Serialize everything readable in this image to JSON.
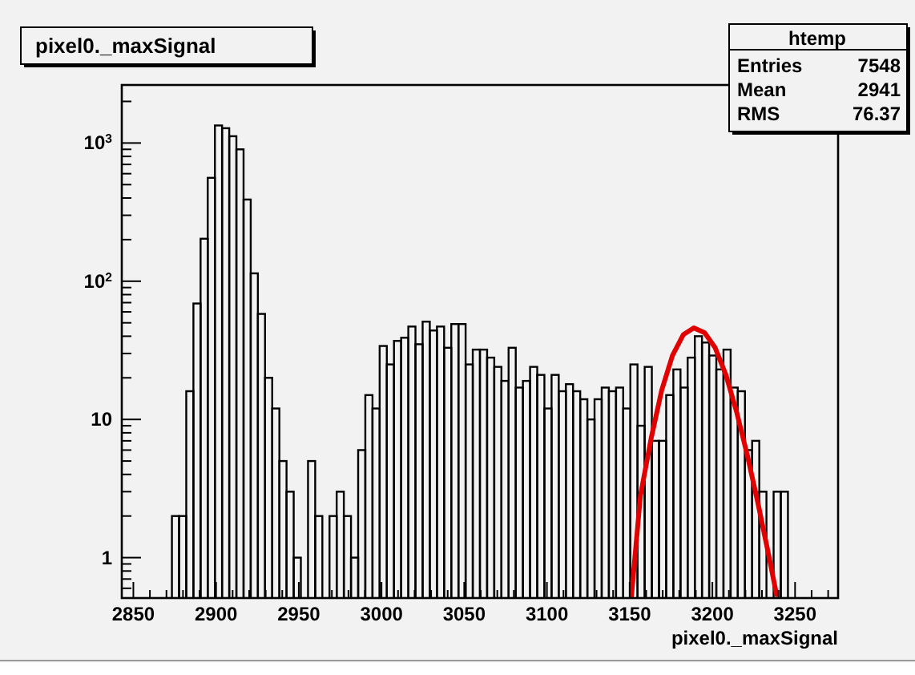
{
  "chart_data": {
    "type": "histogram",
    "title": "pixel0._maxSignal",
    "xlabel": "pixel0._maxSignal",
    "annotations": [
      "htemp",
      "Entries",
      "7548",
      "Mean",
      "2941",
      "RMS",
      "76.37"
    ],
    "log": "y",
    "grid": false,
    "xlim": [
      2843,
      3276
    ],
    "ylim": [
      0.51,
      2630
    ],
    "xticks": [
      2850,
      {
        "value": 2860,
        "label": null
      },
      {
        "value": 2870,
        "label": null
      },
      {
        "value": 2880,
        "label": null
      },
      {
        "value": 2890,
        "label": null
      },
      2900,
      {
        "value": 2910,
        "label": null
      },
      {
        "value": 2920,
        "label": null
      },
      {
        "value": 2930,
        "label": null
      },
      {
        "value": 2940,
        "label": null
      },
      2950,
      {
        "value": 2960,
        "label": null
      },
      {
        "value": 2970,
        "label": null
      },
      {
        "value": 2980,
        "label": null
      },
      {
        "value": 2990,
        "label": null
      },
      3000,
      {
        "value": 3010,
        "label": null
      },
      {
        "value": 3020,
        "label": null
      },
      {
        "value": 3030,
        "label": null
      },
      {
        "value": 3040,
        "label": null
      },
      3050,
      {
        "value": 3060,
        "label": null
      },
      {
        "value": 3070,
        "label": null
      },
      {
        "value": 3080,
        "label": null
      },
      {
        "value": 3090,
        "label": null
      },
      3100,
      {
        "value": 3110,
        "label": null
      },
      {
        "value": 3120,
        "label": null
      },
      {
        "value": 3130,
        "label": null
      },
      {
        "value": 3140,
        "label": null
      },
      3150,
      {
        "value": 3160,
        "label": null
      },
      {
        "value": 3170,
        "label": null
      },
      {
        "value": 3180,
        "label": null
      },
      {
        "value": 3190,
        "label": null
      },
      3200,
      {
        "value": 3210,
        "label": null
      },
      {
        "value": 3220,
        "label": null
      },
      {
        "value": 3230,
        "label": null
      },
      {
        "value": 3240,
        "label": null
      },
      3250,
      {
        "value": 3260,
        "label": null
      },
      {
        "value": 3270,
        "label": null
      }
    ],
    "yticks": [
      {
        "value": 0.6,
        "label": null
      },
      {
        "value": 0.7,
        "label": null
      },
      {
        "value": 0.8,
        "label": null
      },
      {
        "value": 0.9,
        "label": null
      },
      1,
      {
        "value": 2,
        "label": null
      },
      {
        "value": 3,
        "label": null
      },
      {
        "value": 4,
        "label": null
      },
      {
        "value": 5,
        "label": null
      },
      {
        "value": 6,
        "label": null
      },
      {
        "value": 7,
        "label": null
      },
      {
        "value": 8,
        "label": null
      },
      {
        "value": 9,
        "label": null
      },
      10,
      {
        "value": 20,
        "label": null
      },
      {
        "value": 30,
        "label": null
      },
      {
        "value": 40,
        "label": null
      },
      {
        "value": 50,
        "label": null
      },
      {
        "value": 60,
        "label": null
      },
      {
        "value": 70,
        "label": null
      },
      {
        "value": 80,
        "label": null
      },
      {
        "value": 90,
        "label": null
      },
      {
        "value": 100,
        "label": "10$^{2}$"
      },
      {
        "value": 200,
        "label": null
      },
      {
        "value": 300,
        "label": null
      },
      {
        "value": 400,
        "label": null
      },
      {
        "value": 500,
        "label": null
      },
      {
        "value": 600,
        "label": null
      },
      {
        "value": 700,
        "label": null
      },
      {
        "value": 800,
        "label": null
      },
      {
        "value": 900,
        "label": null
      },
      {
        "value": 1000,
        "label": "10$^{3}$"
      },
      {
        "value": 2000,
        "label": null
      }
    ],
    "bins": [
      2873.31,
      2877.64,
      2881.97,
      2886.3,
      2890.63,
      2894.96,
      2899.29,
      2903.62,
      2907.95,
      2912.28,
      2916.61,
      2920.94,
      2925.27,
      2929.6,
      2933.93,
      2938.26,
      2942.59,
      2946.92,
      2951.25,
      2955.58,
      2959.91,
      2964.24,
      2968.57,
      2972.9,
      2977.23,
      2981.56,
      2985.89,
      2990.22,
      2994.55,
      2998.88,
      3003.21,
      3007.54,
      3011.87,
      3016.2,
      3020.53,
      3024.86,
      3029.19,
      3033.52,
      3037.85,
      3042.18,
      3046.51,
      3050.84,
      3055.17,
      3059.5,
      3063.83,
      3068.16,
      3072.49,
      3076.82,
      3081.15,
      3085.48,
      3089.81,
      3094.14,
      3098.47,
      3102.8,
      3107.13,
      3111.46,
      3115.79,
      3120.12,
      3124.45,
      3128.78,
      3133.11,
      3137.44,
      3141.77,
      3146.1,
      3150.43,
      3154.76,
      3159.09,
      3163.42,
      3167.75,
      3172.08,
      3176.41,
      3180.74,
      3185.07,
      3189.4,
      3193.73,
      3198.06,
      3202.39,
      3206.72,
      3211.05,
      3215.38,
      3219.71,
      3224.04,
      3228.37,
      3232.7,
      3237.03,
      3241.36,
      3245.69
    ],
    "series": [
      {
        "color": "#000000",
        "values": [
          2,
          2,
          16,
          69,
          203,
          560,
          1340,
          1280,
          1120,
          900,
          390,
          114,
          58,
          20,
          12,
          5,
          3,
          1,
          null,
          5,
          2,
          null,
          2,
          3,
          2,
          1,
          6,
          15,
          12,
          34,
          25,
          37,
          39,
          47,
          35,
          51,
          44,
          47,
          33,
          49,
          49,
          25,
          32,
          32,
          28,
          24,
          19,
          33,
          17,
          19,
          24,
          21,
          12,
          21,
          16,
          18,
          16,
          14,
          10,
          14,
          17,
          16,
          17,
          12,
          25,
          9,
          24,
          7,
          7,
          15,
          23,
          17,
          28,
          40,
          36,
          29,
          23,
          32,
          17,
          16,
          6,
          7,
          3,
          null,
          3,
          3
        ]
      },
      {
        "type": "line",
        "color": "#e00000",
        "x": [
          3151,
          3156.5,
          3163,
          3169.4,
          3175.9,
          3182.4,
          3188.8,
          3195.3,
          3201.7,
          3208.2,
          3214.6,
          3221,
          3227.5,
          3234,
          3238.8
        ],
        "values": [
          0.51,
          2.8,
          7.3,
          16.3,
          29,
          41,
          46,
          42.4,
          33,
          21,
          11.4,
          5.6,
          2.5,
          1.05,
          0.54
        ]
      }
    ]
  }
}
